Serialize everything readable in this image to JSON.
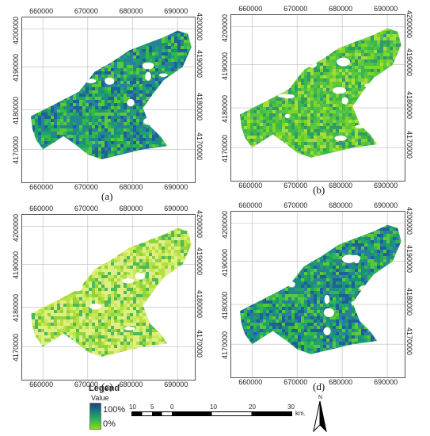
{
  "x_ticks": [
    "660000",
    "670000",
    "680000",
    "690000"
  ],
  "y_ticks": [
    "4200000",
    "4190000",
    "4180000",
    "4170000"
  ],
  "panels": [
    {
      "label": "(a)",
      "palette": "blue-green"
    },
    {
      "label": "(b)",
      "palette": "green"
    },
    {
      "label": "(c)",
      "palette": "yellow-green"
    },
    {
      "label": "(d)",
      "palette": "blue-green"
    }
  ],
  "legend": {
    "title": "Legend",
    "subtitle": "Value",
    "high": "100%",
    "low": "0%",
    "colors": {
      "high": "#1f3f8a",
      "mid": "#1aa06a",
      "low": "#7fe01a"
    }
  },
  "scale_bar": {
    "labels": [
      "10",
      "5",
      "0",
      "10",
      "20",
      "30"
    ],
    "unit": "km."
  },
  "north_arrow": {
    "label": "N"
  }
}
